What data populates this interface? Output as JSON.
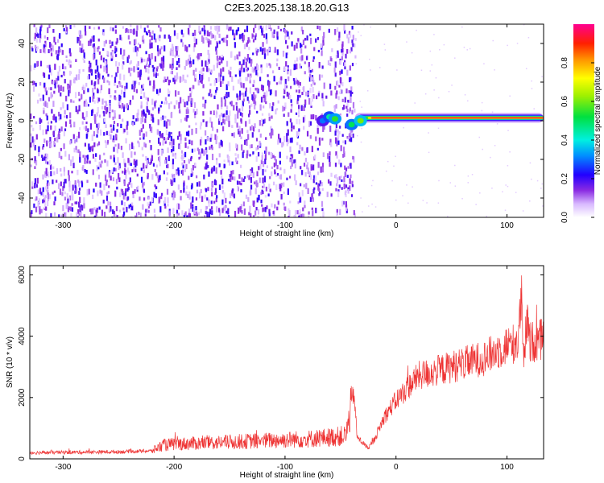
{
  "title": "C2E3.2025.138.18.20.G13",
  "chart_data": [
    {
      "type": "heatmap",
      "xlabel": "Height of straight line (km)",
      "ylabel": "Frequency (Hz)",
      "xlim": [
        -330,
        133
      ],
      "ylim": [
        -50,
        50
      ],
      "xticks": [
        -300,
        -200,
        -100,
        0,
        100
      ],
      "yticks": [
        -40,
        -20,
        0,
        20,
        40
      ],
      "colorbar": {
        "label": "Normalized spectral amplitude",
        "range": [
          0,
          1
        ],
        "ticks": [
          0.0,
          0.2,
          0.4,
          0.6,
          0.8
        ]
      },
      "features": [
        {
          "name": "noise",
          "x_range": [
            -330,
            -37
          ],
          "y_range": [
            -50,
            50
          ],
          "amplitude": 0.1
        },
        {
          "name": "carrier",
          "x_range": [
            -37,
            133
          ],
          "y": 1.5,
          "amplitude": 0.95
        }
      ]
    },
    {
      "type": "line",
      "xlabel": "Height of straight line (km)",
      "ylabel": "SNR (10 * v/v)",
      "xlim": [
        -330,
        133
      ],
      "ylim": [
        0,
        6300
      ],
      "xticks": [
        -300,
        -200,
        -100,
        0,
        100
      ],
      "yticks": [
        0,
        2000,
        4000,
        6000
      ],
      "color": "#ee3333",
      "series": [
        {
          "x": [
            -330,
            -300,
            -250,
            -220,
            -210,
            -200,
            -150,
            -100,
            -80,
            -60,
            -45,
            -38,
            -35,
            -25,
            -20,
            -10,
            0,
            10,
            20,
            40,
            60,
            80,
            90,
            100,
            110,
            113,
            115,
            118,
            120,
            133
          ],
          "y": [
            200,
            210,
            230,
            260,
            450,
            480,
            550,
            620,
            650,
            700,
            760,
            2200,
            700,
            350,
            600,
            1400,
            1900,
            2300,
            2700,
            2900,
            3100,
            3300,
            3500,
            3700,
            3800,
            5300,
            3000,
            4600,
            3800,
            3900
          ]
        }
      ]
    }
  ]
}
